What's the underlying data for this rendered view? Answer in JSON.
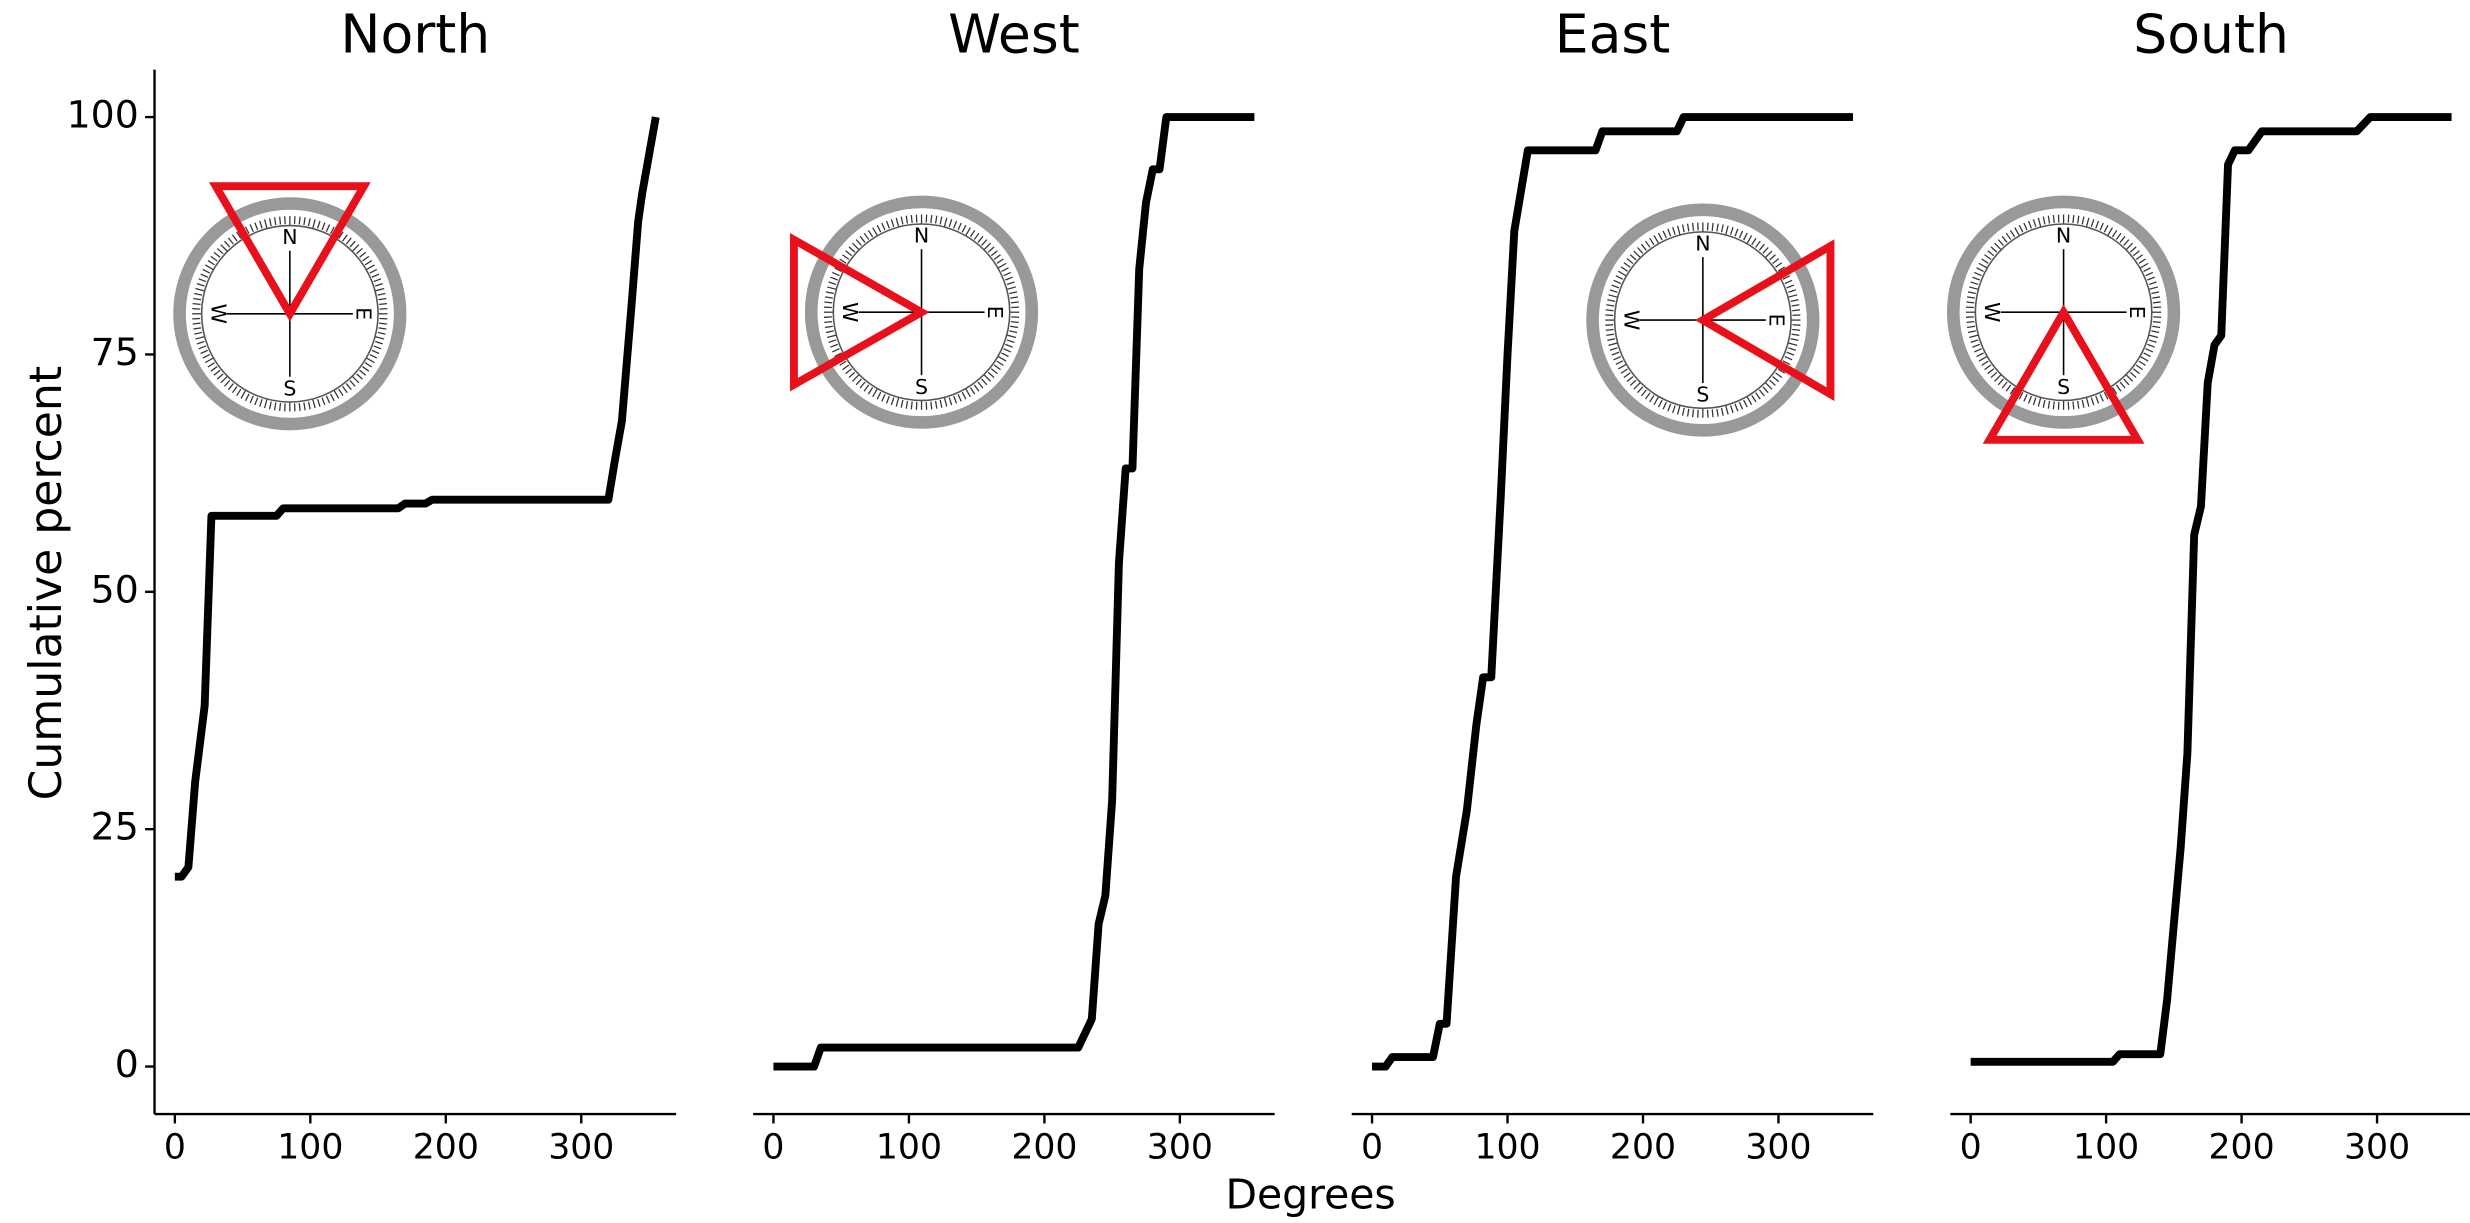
{
  "chart_data": [
    {
      "type": "line",
      "title": "North",
      "color": "#000000",
      "x": [
        0,
        5,
        10,
        15,
        22,
        27,
        75,
        80,
        165,
        170,
        185,
        190,
        320,
        325,
        330,
        337,
        342,
        345,
        355
      ],
      "values": [
        20,
        20,
        21,
        30,
        38,
        58,
        58,
        58.8,
        58.8,
        59.3,
        59.3,
        59.7,
        59.7,
        64,
        68,
        80,
        89,
        92,
        100
      ],
      "xlim": [
        -15,
        370
      ],
      "xticks": [
        0,
        100,
        200,
        300
      ],
      "ylim": [
        -5,
        105
      ],
      "yticks": [
        0,
        25,
        50,
        75,
        100
      ]
    },
    {
      "type": "line",
      "title": "West",
      "color": "#000000",
      "x": [
        0,
        30,
        35,
        225,
        235,
        240,
        245,
        250,
        255,
        260,
        265,
        270,
        275,
        280,
        285,
        290,
        355
      ],
      "values": [
        0,
        0,
        2,
        2,
        5,
        15,
        18,
        28,
        53,
        63,
        63,
        84,
        91,
        94.5,
        94.5,
        100,
        100
      ],
      "xlim": [
        -15,
        370
      ],
      "xticks": [
        0,
        100,
        200,
        300
      ],
      "ylim": [
        -5,
        105
      ]
    },
    {
      "type": "line",
      "title": "East",
      "color": "#000000",
      "x": [
        0,
        10,
        15,
        45,
        50,
        55,
        62,
        70,
        77,
        82,
        88,
        95,
        100,
        105,
        115,
        165,
        170,
        225,
        230,
        355
      ],
      "values": [
        0,
        0,
        1,
        1,
        4.5,
        4.5,
        20,
        27,
        36,
        41,
        41,
        60,
        75,
        88,
        96.5,
        96.5,
        98.5,
        98.5,
        100,
        100
      ],
      "xlim": [
        -15,
        370
      ],
      "xticks": [
        0,
        100,
        200,
        300
      ],
      "ylim": [
        -5,
        105
      ]
    },
    {
      "type": "line",
      "title": "South",
      "color": "#000000",
      "x": [
        0,
        105,
        110,
        140,
        145,
        150,
        155,
        160,
        165,
        170,
        175,
        180,
        185,
        190,
        195,
        205,
        215,
        285,
        295,
        355
      ],
      "values": [
        0.5,
        0.5,
        1.3,
        1.3,
        7,
        15,
        23,
        33,
        56,
        59,
        72,
        76,
        77,
        95,
        96.5,
        96.5,
        98.5,
        98.5,
        100,
        100
      ],
      "xlim": [
        -15,
        370
      ],
      "xticks": [
        0,
        100,
        200,
        300
      ],
      "ylim": [
        -5,
        105
      ]
    }
  ],
  "x_label": "Degrees",
  "y_label": "Cumulative percent",
  "compass_labels": [
    "N",
    "E",
    "S",
    "W"
  ]
}
